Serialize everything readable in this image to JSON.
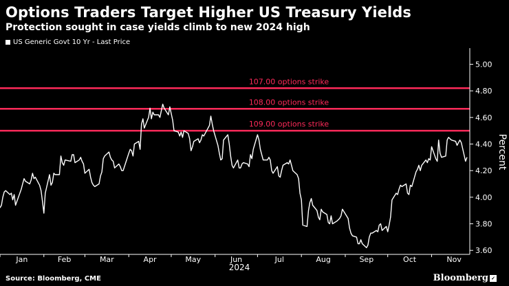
{
  "title": "Options Traders Target Higher US Treasury Yields",
  "subtitle": "Protection sought in case yields climb to new 2024 high",
  "legend_label": "US Generic Govt 10 Yr - Last Price",
  "source": "Source: Bloomberg, CME",
  "brand": "Bloomberg",
  "colors": {
    "series": "#ffffff",
    "strike": "#ff2a5a",
    "background": "#000000"
  },
  "chart_data": {
    "type": "line",
    "ylabel": "Percent",
    "xlabel": "2024",
    "ylim": [
      3.57,
      5.08
    ],
    "yticks": [
      "3.60",
      "3.80",
      "4.00",
      "4.20",
      "4.40",
      "4.60",
      "4.80",
      "5.00"
    ],
    "y_axis_side": "right",
    "grid": false,
    "legend_position": "top-left",
    "months": [
      "Jan",
      "Feb",
      "Mar",
      "Apr",
      "May",
      "Jun",
      "Jul",
      "Aug",
      "Sep",
      "Oct",
      "Nov"
    ],
    "reference_lines": [
      {
        "label": "107.00 options strike",
        "value": 4.82
      },
      {
        "label": "108.00 options strike",
        "value": 4.665
      },
      {
        "label": "109.00 options strike",
        "value": 4.5
      }
    ],
    "series": [
      {
        "points": [
          [
            "2024-01-01",
            3.92
          ],
          [
            "2024-01-02",
            3.94
          ],
          [
            "2024-01-03",
            4.0
          ],
          [
            "2024-01-04",
            4.04
          ],
          [
            "2024-01-05",
            4.05
          ],
          [
            "2024-01-08",
            4.02
          ],
          [
            "2024-01-09",
            4.03
          ],
          [
            "2024-01-10",
            3.98
          ],
          [
            "2024-01-11",
            4.02
          ],
          [
            "2024-01-12",
            3.94
          ],
          [
            "2024-01-16",
            4.06
          ],
          [
            "2024-01-17",
            4.1
          ],
          [
            "2024-01-18",
            4.14
          ],
          [
            "2024-01-19",
            4.12
          ],
          [
            "2024-01-22",
            4.1
          ],
          [
            "2024-01-23",
            4.13
          ],
          [
            "2024-01-24",
            4.18
          ],
          [
            "2024-01-25",
            4.14
          ],
          [
            "2024-01-26",
            4.15
          ],
          [
            "2024-01-29",
            4.09
          ],
          [
            "2024-01-30",
            4.05
          ],
          [
            "2024-01-31",
            3.97
          ],
          [
            "2024-02-01",
            3.88
          ],
          [
            "2024-02-02",
            4.03
          ],
          [
            "2024-02-05",
            4.17
          ],
          [
            "2024-02-06",
            4.09
          ],
          [
            "2024-02-07",
            4.11
          ],
          [
            "2024-02-08",
            4.18
          ],
          [
            "2024-02-09",
            4.17
          ],
          [
            "2024-02-12",
            4.17
          ],
          [
            "2024-02-13",
            4.31
          ],
          [
            "2024-02-14",
            4.26
          ],
          [
            "2024-02-15",
            4.24
          ],
          [
            "2024-02-16",
            4.28
          ],
          [
            "2024-02-20",
            4.27
          ],
          [
            "2024-02-21",
            4.32
          ],
          [
            "2024-02-22",
            4.32
          ],
          [
            "2024-02-23",
            4.26
          ],
          [
            "2024-02-26",
            4.28
          ],
          [
            "2024-02-27",
            4.3
          ],
          [
            "2024-02-28",
            4.27
          ],
          [
            "2024-02-29",
            4.25
          ],
          [
            "2024-03-01",
            4.18
          ],
          [
            "2024-03-04",
            4.21
          ],
          [
            "2024-03-05",
            4.15
          ],
          [
            "2024-03-06",
            4.11
          ],
          [
            "2024-03-07",
            4.09
          ],
          [
            "2024-03-08",
            4.08
          ],
          [
            "2024-03-11",
            4.1
          ],
          [
            "2024-03-12",
            4.16
          ],
          [
            "2024-03-13",
            4.19
          ],
          [
            "2024-03-14",
            4.29
          ],
          [
            "2024-03-15",
            4.31
          ],
          [
            "2024-03-18",
            4.34
          ],
          [
            "2024-03-19",
            4.3
          ],
          [
            "2024-03-20",
            4.28
          ],
          [
            "2024-03-21",
            4.27
          ],
          [
            "2024-03-22",
            4.22
          ],
          [
            "2024-03-25",
            4.25
          ],
          [
            "2024-03-26",
            4.23
          ],
          [
            "2024-03-27",
            4.2
          ],
          [
            "2024-03-28",
            4.2
          ],
          [
            "2024-04-01",
            4.33
          ],
          [
            "2024-04-02",
            4.36
          ],
          [
            "2024-04-03",
            4.35
          ],
          [
            "2024-04-04",
            4.31
          ],
          [
            "2024-04-05",
            4.4
          ],
          [
            "2024-04-08",
            4.42
          ],
          [
            "2024-04-09",
            4.36
          ],
          [
            "2024-04-10",
            4.55
          ],
          [
            "2024-04-11",
            4.59
          ],
          [
            "2024-04-12",
            4.52
          ],
          [
            "2024-04-15",
            4.6
          ],
          [
            "2024-04-16",
            4.67
          ],
          [
            "2024-04-17",
            4.59
          ],
          [
            "2024-04-18",
            4.64
          ],
          [
            "2024-04-19",
            4.62
          ],
          [
            "2024-04-22",
            4.62
          ],
          [
            "2024-04-23",
            4.6
          ],
          [
            "2024-04-24",
            4.65
          ],
          [
            "2024-04-25",
            4.7
          ],
          [
            "2024-04-26",
            4.67
          ],
          [
            "2024-04-29",
            4.62
          ],
          [
            "2024-04-30",
            4.68
          ],
          [
            "2024-05-01",
            4.63
          ],
          [
            "2024-05-02",
            4.58
          ],
          [
            "2024-05-03",
            4.5
          ],
          [
            "2024-05-06",
            4.49
          ],
          [
            "2024-05-07",
            4.46
          ],
          [
            "2024-05-08",
            4.49
          ],
          [
            "2024-05-09",
            4.45
          ],
          [
            "2024-05-10",
            4.5
          ],
          [
            "2024-05-13",
            4.48
          ],
          [
            "2024-05-14",
            4.44
          ],
          [
            "2024-05-15",
            4.35
          ],
          [
            "2024-05-16",
            4.38
          ],
          [
            "2024-05-17",
            4.42
          ],
          [
            "2024-05-20",
            4.44
          ],
          [
            "2024-05-21",
            4.41
          ],
          [
            "2024-05-22",
            4.43
          ],
          [
            "2024-05-23",
            4.47
          ],
          [
            "2024-05-24",
            4.46
          ],
          [
            "2024-05-28",
            4.54
          ],
          [
            "2024-05-29",
            4.61
          ],
          [
            "2024-05-30",
            4.55
          ],
          [
            "2024-05-31",
            4.5
          ],
          [
            "2024-06-03",
            4.39
          ],
          [
            "2024-06-04",
            4.33
          ],
          [
            "2024-06-05",
            4.28
          ],
          [
            "2024-06-06",
            4.29
          ],
          [
            "2024-06-07",
            4.43
          ],
          [
            "2024-06-10",
            4.47
          ],
          [
            "2024-06-11",
            4.4
          ],
          [
            "2024-06-12",
            4.31
          ],
          [
            "2024-06-13",
            4.24
          ],
          [
            "2024-06-14",
            4.22
          ],
          [
            "2024-06-17",
            4.28
          ],
          [
            "2024-06-18",
            4.22
          ],
          [
            "2024-06-19",
            4.22
          ],
          [
            "2024-06-20",
            4.25
          ],
          [
            "2024-06-21",
            4.26
          ],
          [
            "2024-06-24",
            4.25
          ],
          [
            "2024-06-25",
            4.23
          ],
          [
            "2024-06-26",
            4.32
          ],
          [
            "2024-06-27",
            4.29
          ],
          [
            "2024-06-28",
            4.36
          ],
          [
            "2024-07-01",
            4.47
          ],
          [
            "2024-07-02",
            4.43
          ],
          [
            "2024-07-03",
            4.36
          ],
          [
            "2024-07-05",
            4.28
          ],
          [
            "2024-07-08",
            4.28
          ],
          [
            "2024-07-09",
            4.3
          ],
          [
            "2024-07-10",
            4.28
          ],
          [
            "2024-07-11",
            4.2
          ],
          [
            "2024-07-12",
            4.18
          ],
          [
            "2024-07-15",
            4.23
          ],
          [
            "2024-07-16",
            4.16
          ],
          [
            "2024-07-17",
            4.15
          ],
          [
            "2024-07-18",
            4.2
          ],
          [
            "2024-07-19",
            4.24
          ],
          [
            "2024-07-22",
            4.26
          ],
          [
            "2024-07-23",
            4.25
          ],
          [
            "2024-07-24",
            4.28
          ],
          [
            "2024-07-25",
            4.24
          ],
          [
            "2024-07-26",
            4.2
          ],
          [
            "2024-07-29",
            4.17
          ],
          [
            "2024-07-30",
            4.14
          ],
          [
            "2024-07-31",
            4.03
          ],
          [
            "2024-08-01",
            3.98
          ],
          [
            "2024-08-02",
            3.79
          ],
          [
            "2024-08-05",
            3.78
          ],
          [
            "2024-08-06",
            3.9
          ],
          [
            "2024-08-07",
            3.96
          ],
          [
            "2024-08-08",
            3.99
          ],
          [
            "2024-08-09",
            3.94
          ],
          [
            "2024-08-12",
            3.9
          ],
          [
            "2024-08-13",
            3.85
          ],
          [
            "2024-08-14",
            3.83
          ],
          [
            "2024-08-15",
            3.91
          ],
          [
            "2024-08-16",
            3.89
          ],
          [
            "2024-08-19",
            3.87
          ],
          [
            "2024-08-20",
            3.81
          ],
          [
            "2024-08-21",
            3.8
          ],
          [
            "2024-08-22",
            3.86
          ],
          [
            "2024-08-23",
            3.8
          ],
          [
            "2024-08-26",
            3.82
          ],
          [
            "2024-08-27",
            3.83
          ],
          [
            "2024-08-28",
            3.84
          ],
          [
            "2024-08-29",
            3.86
          ],
          [
            "2024-08-30",
            3.91
          ],
          [
            "2024-09-03",
            3.84
          ],
          [
            "2024-09-04",
            3.77
          ],
          [
            "2024-09-05",
            3.73
          ],
          [
            "2024-09-06",
            3.71
          ],
          [
            "2024-09-09",
            3.7
          ],
          [
            "2024-09-10",
            3.65
          ],
          [
            "2024-09-11",
            3.65
          ],
          [
            "2024-09-12",
            3.68
          ],
          [
            "2024-09-13",
            3.65
          ],
          [
            "2024-09-16",
            3.62
          ],
          [
            "2024-09-17",
            3.64
          ],
          [
            "2024-09-18",
            3.7
          ],
          [
            "2024-09-19",
            3.73
          ],
          [
            "2024-09-20",
            3.73
          ],
          [
            "2024-09-23",
            3.75
          ],
          [
            "2024-09-24",
            3.74
          ],
          [
            "2024-09-25",
            3.79
          ],
          [
            "2024-09-26",
            3.8
          ],
          [
            "2024-09-27",
            3.75
          ],
          [
            "2024-09-30",
            3.78
          ],
          [
            "2024-10-01",
            3.74
          ],
          [
            "2024-10-02",
            3.79
          ],
          [
            "2024-10-03",
            3.85
          ],
          [
            "2024-10-04",
            3.98
          ],
          [
            "2024-10-07",
            4.03
          ],
          [
            "2024-10-08",
            4.02
          ],
          [
            "2024-10-09",
            4.06
          ],
          [
            "2024-10-10",
            4.09
          ],
          [
            "2024-10-11",
            4.08
          ],
          [
            "2024-10-14",
            4.1
          ],
          [
            "2024-10-15",
            4.03
          ],
          [
            "2024-10-16",
            4.02
          ],
          [
            "2024-10-17",
            4.09
          ],
          [
            "2024-10-18",
            4.08
          ],
          [
            "2024-10-21",
            4.19
          ],
          [
            "2024-10-22",
            4.21
          ],
          [
            "2024-10-23",
            4.24
          ],
          [
            "2024-10-24",
            4.2
          ],
          [
            "2024-10-25",
            4.24
          ],
          [
            "2024-10-28",
            4.28
          ],
          [
            "2024-10-29",
            4.26
          ],
          [
            "2024-10-30",
            4.29
          ],
          [
            "2024-10-31",
            4.28
          ],
          [
            "2024-11-01",
            4.38
          ],
          [
            "2024-11-04",
            4.29
          ],
          [
            "2024-11-05",
            4.27
          ],
          [
            "2024-11-06",
            4.43
          ],
          [
            "2024-11-07",
            4.33
          ],
          [
            "2024-11-08",
            4.3
          ],
          [
            "2024-11-11",
            4.31
          ],
          [
            "2024-11-12",
            4.43
          ],
          [
            "2024-11-13",
            4.45
          ],
          [
            "2024-11-14",
            4.44
          ],
          [
            "2024-11-15",
            4.43
          ],
          [
            "2024-11-18",
            4.42
          ],
          [
            "2024-11-19",
            4.39
          ],
          [
            "2024-11-20",
            4.41
          ],
          [
            "2024-11-21",
            4.43
          ],
          [
            "2024-11-22",
            4.41
          ],
          [
            "2024-11-25",
            4.27
          ],
          [
            "2024-11-26",
            4.3
          ]
        ]
      }
    ]
  }
}
